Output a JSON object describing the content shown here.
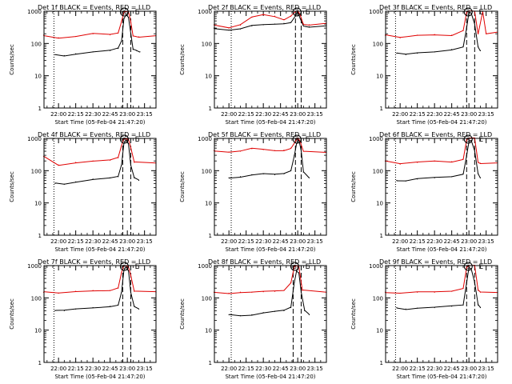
{
  "figure": {
    "ylabel": "Counts/sec",
    "xlabel": "Start Time (05-Feb-04 21:47:20)",
    "x_ticks": [
      "22:00",
      "22:15",
      "22:30",
      "22:45",
      "23:00",
      "23:15"
    ],
    "y_ticks": [
      "1",
      "10",
      "100",
      "1000"
    ],
    "markers": {
      "start": "S",
      "end": "E"
    }
  },
  "colors": {
    "events": "#000000",
    "lld": "#e00000",
    "axes": "#000000",
    "background": "#ffffff"
  },
  "chart_data": [
    {
      "type": "line",
      "title": "Det 1f BLACK = Events, RED = LLD",
      "xlim": [
        "21:47:20",
        "23:25:00"
      ],
      "ylim": [
        1,
        1000
      ],
      "yscale": "log",
      "guides": {
        "dotted": "21:56:00",
        "dashed": [
          "22:56:00",
          "23:03:00"
        ]
      },
      "series": [
        {
          "name": "Events",
          "color": "#000000",
          "x": [
            "21:57",
            "22:05",
            "22:15",
            "22:30",
            "22:45",
            "22:52",
            "22:55",
            "22:57",
            "22:59",
            "23:01",
            "23:03",
            "23:05",
            "23:08",
            "23:11"
          ],
          "values": [
            45,
            42,
            48,
            55,
            60,
            70,
            120,
            600,
            800,
            650,
            200,
            65,
            60,
            55
          ]
        },
        {
          "name": "LLD",
          "color": "#e00000",
          "x": [
            "21:47",
            "22:00",
            "22:15",
            "22:30",
            "22:45",
            "22:52",
            "22:55",
            "22:57",
            "22:59",
            "23:01",
            "23:03",
            "23:05",
            "23:10",
            "23:25"
          ],
          "values": [
            180,
            150,
            165,
            200,
            185,
            210,
            500,
            950,
            1000,
            950,
            450,
            170,
            160,
            180
          ]
        }
      ]
    },
    {
      "type": "line",
      "title": "Det 2f BLACK = Events, RED = LLD",
      "xlim": [
        "21:47:20",
        "23:25:00"
      ],
      "ylim": [
        1,
        1000
      ],
      "yscale": "log",
      "guides": {
        "dotted": "22:02:00",
        "dashed": [
          "22:58:00",
          "23:03:00"
        ]
      },
      "series": [
        {
          "name": "Events",
          "color": "#000000",
          "x": [
            "21:47",
            "22:00",
            "22:10",
            "22:20",
            "22:30",
            "22:40",
            "22:48",
            "22:54",
            "22:58",
            "23:00",
            "23:02",
            "23:05",
            "23:10",
            "23:25"
          ],
          "values": [
            300,
            260,
            280,
            350,
            380,
            400,
            420,
            450,
            700,
            1000,
            600,
            350,
            330,
            360
          ]
        },
        {
          "name": "LLD",
          "color": "#e00000",
          "x": [
            "21:47",
            "22:00",
            "22:10",
            "22:20",
            "22:30",
            "22:40",
            "22:48",
            "22:54",
            "22:58",
            "23:00",
            "23:02",
            "23:05",
            "23:10",
            "23:25"
          ],
          "values": [
            380,
            300,
            370,
            650,
            800,
            700,
            550,
            700,
            950,
            1000,
            800,
            400,
            380,
            420
          ]
        }
      ]
    },
    {
      "type": "line",
      "title": "Det 3f BLACK = Events, RED = LLD",
      "xlim": [
        "21:47:20",
        "23:25:00"
      ],
      "ylim": [
        1,
        1000
      ],
      "yscale": "log",
      "guides": {
        "dotted": "21:56:00",
        "dashed": [
          "22:58:00",
          "23:05:00"
        ]
      },
      "series": [
        {
          "name": "Events",
          "color": "#000000",
          "x": [
            "21:57",
            "22:05",
            "22:15",
            "22:30",
            "22:45",
            "22:55",
            "22:58",
            "23:00",
            "23:02",
            "23:05",
            "23:08",
            "23:10"
          ],
          "values": [
            50,
            45,
            50,
            55,
            65,
            80,
            300,
            900,
            850,
            400,
            80,
            60
          ]
        },
        {
          "name": "LLD",
          "color": "#e00000",
          "x": [
            "21:47",
            "22:00",
            "22:15",
            "22:30",
            "22:45",
            "22:55",
            "22:58",
            "23:00",
            "23:05",
            "23:08",
            "23:12",
            "23:15",
            "23:25"
          ],
          "values": [
            180,
            150,
            180,
            190,
            180,
            250,
            900,
            1000,
            1000,
            200,
            1000,
            200,
            220
          ]
        }
      ]
    },
    {
      "type": "line",
      "title": "Det 4f BLACK = Events, RED = LLD",
      "xlim": [
        "21:47:20",
        "23:25:00"
      ],
      "ylim": [
        1,
        1000
      ],
      "yscale": "log",
      "guides": {
        "dotted": "21:56:00",
        "dashed": [
          "22:56:00",
          "23:03:00"
        ]
      },
      "series": [
        {
          "name": "Events",
          "color": "#000000",
          "x": [
            "21:57",
            "22:05",
            "22:15",
            "22:30",
            "22:45",
            "22:52",
            "22:55",
            "22:57",
            "22:59",
            "23:01",
            "23:03",
            "23:06",
            "23:10"
          ],
          "values": [
            40,
            38,
            45,
            55,
            60,
            65,
            150,
            700,
            900,
            700,
            150,
            60,
            50
          ]
        },
        {
          "name": "LLD",
          "color": "#e00000",
          "x": [
            "21:47",
            "22:00",
            "22:15",
            "22:30",
            "22:45",
            "22:52",
            "22:55",
            "22:57",
            "22:59",
            "23:01",
            "23:03",
            "23:06",
            "23:25"
          ],
          "values": [
            280,
            150,
            180,
            200,
            210,
            250,
            600,
            1000,
            1000,
            950,
            500,
            180,
            170
          ]
        }
      ]
    },
    {
      "type": "line",
      "title": "Det 5f BLACK = Events, RED = LLD",
      "xlim": [
        "21:47:20",
        "23:25:00"
      ],
      "ylim": [
        1,
        1000
      ],
      "yscale": "log",
      "guides": {
        "dotted": "22:02:00",
        "dashed": [
          "22:58:00",
          "23:03:00"
        ]
      },
      "series": [
        {
          "name": "Events",
          "color": "#000000",
          "x": [
            "22:00",
            "22:10",
            "22:20",
            "22:30",
            "22:40",
            "22:48",
            "22:54",
            "22:57",
            "22:59",
            "23:01",
            "23:03",
            "23:05",
            "23:10"
          ],
          "values": [
            60,
            65,
            75,
            80,
            75,
            80,
            100,
            300,
            700,
            900,
            400,
            90,
            60
          ]
        },
        {
          "name": "LLD",
          "color": "#e00000",
          "x": [
            "21:47",
            "22:00",
            "22:10",
            "22:20",
            "22:30",
            "22:40",
            "22:48",
            "22:54",
            "22:58",
            "23:00",
            "23:02",
            "23:05",
            "23:25"
          ],
          "values": [
            420,
            380,
            400,
            480,
            450,
            420,
            430,
            500,
            800,
            1000,
            800,
            400,
            380
          ]
        }
      ]
    },
    {
      "type": "line",
      "title": "Det 6f BLACK = Events, RED = LLD",
      "xlim": [
        "21:47:20",
        "23:25:00"
      ],
      "ylim": [
        1,
        1000
      ],
      "yscale": "log",
      "guides": {
        "dotted": "21:56:00",
        "dashed": [
          "22:58:00",
          "23:05:00"
        ]
      },
      "series": [
        {
          "name": "Events",
          "color": "#000000",
          "x": [
            "21:57",
            "22:05",
            "22:15",
            "22:30",
            "22:45",
            "22:55",
            "22:58",
            "23:00",
            "23:02",
            "23:05",
            "23:08",
            "23:10"
          ],
          "values": [
            50,
            48,
            55,
            60,
            65,
            80,
            300,
            800,
            850,
            400,
            80,
            60
          ]
        },
        {
          "name": "LLD",
          "color": "#e00000",
          "x": [
            "21:47",
            "22:00",
            "22:15",
            "22:30",
            "22:45",
            "22:55",
            "22:58",
            "23:00",
            "23:05",
            "23:08",
            "23:10",
            "23:25"
          ],
          "values": [
            200,
            160,
            180,
            200,
            190,
            230,
            900,
            1000,
            1000,
            180,
            170,
            180
          ]
        }
      ]
    },
    {
      "type": "line",
      "title": "Det 7f BLACK = Events, RED = LLD",
      "xlim": [
        "21:47:20",
        "23:25:00"
      ],
      "ylim": [
        1,
        1000
      ],
      "yscale": "log",
      "guides": {
        "dotted": "21:56:00",
        "dashed": [
          "22:56:00",
          "23:03:00"
        ]
      },
      "series": [
        {
          "name": "Events",
          "color": "#000000",
          "x": [
            "21:57",
            "22:05",
            "22:15",
            "22:30",
            "22:45",
            "22:52",
            "22:55",
            "22:57",
            "22:59",
            "23:01",
            "23:03",
            "23:06",
            "23:10"
          ],
          "values": [
            40,
            40,
            45,
            50,
            55,
            60,
            150,
            700,
            900,
            700,
            150,
            55,
            45
          ]
        },
        {
          "name": "LLD",
          "color": "#e00000",
          "x": [
            "21:47",
            "22:00",
            "22:15",
            "22:30",
            "22:45",
            "22:52",
            "22:55",
            "22:57",
            "22:59",
            "23:01",
            "23:03",
            "23:06",
            "23:25"
          ],
          "values": [
            150,
            140,
            160,
            170,
            170,
            200,
            600,
            1000,
            1000,
            950,
            500,
            160,
            150
          ]
        }
      ]
    },
    {
      "type": "line",
      "title": "Det 8f BLACK = Events, RED = LLD",
      "xlim": [
        "21:47:20",
        "23:25:00"
      ],
      "ylim": [
        1,
        1000
      ],
      "yscale": "log",
      "guides": {
        "dotted": "22:02:00",
        "dashed": [
          "22:56:00",
          "23:03:00"
        ]
      },
      "series": [
        {
          "name": "Events",
          "color": "#000000",
          "x": [
            "22:00",
            "22:10",
            "22:20",
            "22:30",
            "22:40",
            "22:48",
            "22:54",
            "22:57",
            "22:59",
            "23:01",
            "23:03",
            "23:06",
            "23:10"
          ],
          "values": [
            30,
            28,
            30,
            35,
            38,
            40,
            50,
            300,
            700,
            600,
            150,
            40,
            30
          ]
        },
        {
          "name": "LLD",
          "color": "#e00000",
          "x": [
            "21:47",
            "22:00",
            "22:10",
            "22:20",
            "22:30",
            "22:40",
            "22:48",
            "22:54",
            "22:57",
            "22:59",
            "23:01",
            "23:04",
            "23:25"
          ],
          "values": [
            150,
            140,
            150,
            150,
            155,
            160,
            170,
            300,
            950,
            1000,
            900,
            170,
            150
          ]
        }
      ]
    },
    {
      "type": "line",
      "title": "Det 9f BLACK = Events, RED = LLD",
      "xlim": [
        "21:47:20",
        "23:25:00"
      ],
      "ylim": [
        1,
        1000
      ],
      "yscale": "log",
      "guides": {
        "dotted": "21:56:00",
        "dashed": [
          "22:58:00",
          "23:05:00"
        ]
      },
      "series": [
        {
          "name": "Events",
          "color": "#000000",
          "x": [
            "21:57",
            "22:05",
            "22:15",
            "22:30",
            "22:45",
            "22:55",
            "22:58",
            "23:00",
            "23:02",
            "23:05",
            "23:08",
            "23:10"
          ],
          "values": [
            50,
            45,
            48,
            50,
            55,
            60,
            300,
            900,
            800,
            300,
            60,
            50
          ]
        },
        {
          "name": "LLD",
          "color": "#e00000",
          "x": [
            "21:47",
            "22:00",
            "22:15",
            "22:30",
            "22:45",
            "22:55",
            "22:58",
            "23:00",
            "23:05",
            "23:08",
            "23:10",
            "23:25"
          ],
          "values": [
            150,
            140,
            150,
            150,
            160,
            200,
            900,
            1000,
            1000,
            170,
            150,
            150
          ]
        }
      ]
    }
  ]
}
